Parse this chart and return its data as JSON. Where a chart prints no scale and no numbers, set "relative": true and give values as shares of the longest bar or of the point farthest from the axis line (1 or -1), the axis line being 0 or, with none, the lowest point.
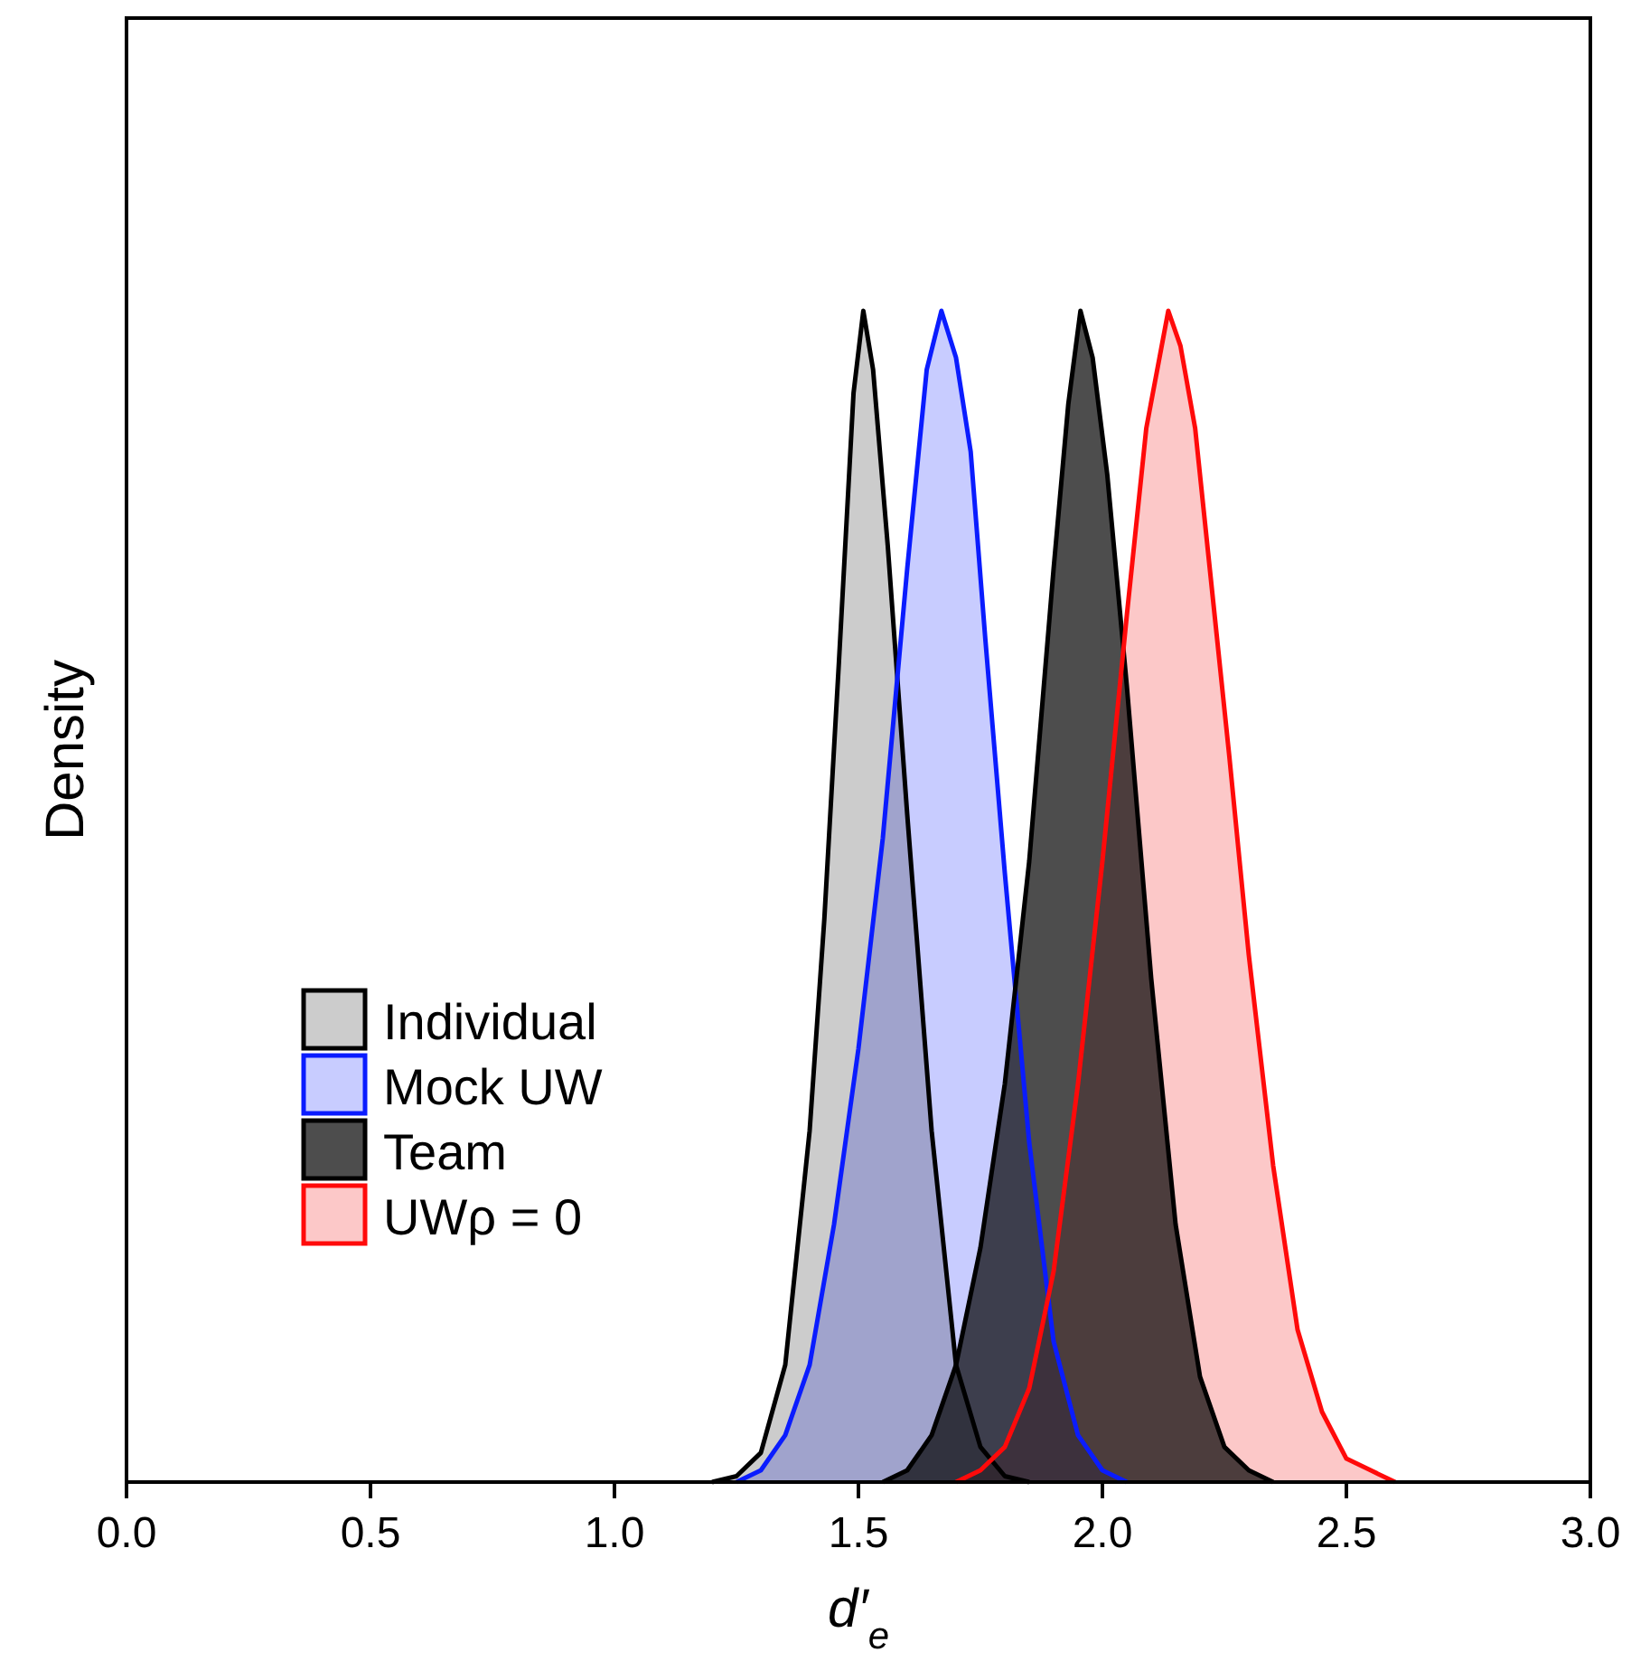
{
  "chart_data": {
    "type": "area",
    "relative": true,
    "xlabel": "d′$_{e}$",
    "ylabel": "Density",
    "xlim": [
      0,
      3
    ],
    "xticks": [
      {
        "value": 0,
        "label": "0.0"
      },
      {
        "value": 0.5,
        "label": "0.5"
      },
      {
        "value": 1,
        "label": "1.0"
      },
      {
        "value": 1.5,
        "label": "1.5"
      },
      {
        "value": 2,
        "label": "2.0"
      },
      {
        "value": 2.5,
        "label": "2.5"
      },
      {
        "value": 3,
        "label": "3.0"
      }
    ],
    "legend": "bottom left",
    "grid": false,
    "series": [
      {
        "name": "Individual",
        "color": "#cccccc",
        "x": [
          1.2,
          1.25,
          1.3,
          1.35,
          1.4,
          1.43,
          1.46,
          1.49,
          1.51,
          1.53,
          1.56,
          1.6,
          1.65,
          1.7,
          1.75,
          1.8,
          1.85
        ],
        "values": [
          0,
          0.005,
          0.025,
          0.1,
          0.3,
          0.48,
          0.7,
          0.93,
          1,
          0.95,
          0.8,
          0.57,
          0.3,
          0.1,
          0.03,
          0.005,
          0
        ]
      },
      {
        "name": "Mock UW",
        "color": "#c8ccff",
        "x": [
          1.25,
          1.3,
          1.35,
          1.4,
          1.45,
          1.5,
          1.55,
          1.6,
          1.64,
          1.67,
          1.7,
          1.73,
          1.76,
          1.8,
          1.85,
          1.9,
          1.95,
          2,
          2.05
        ],
        "values": [
          0,
          0.01,
          0.04,
          0.1,
          0.22,
          0.37,
          0.55,
          0.78,
          0.95,
          1,
          0.96,
          0.88,
          0.72,
          0.52,
          0.29,
          0.12,
          0.04,
          0.01,
          0
        ]
      },
      {
        "name": "Team",
        "color": "#4d4d4d",
        "x": [
          1.55,
          1.6,
          1.65,
          1.7,
          1.75,
          1.8,
          1.85,
          1.9,
          1.93,
          1.955,
          1.98,
          2.01,
          2.05,
          2.1,
          2.15,
          2.2,
          2.25,
          2.3,
          2.35
        ],
        "values": [
          0,
          0.01,
          0.04,
          0.1,
          0.2,
          0.34,
          0.53,
          0.78,
          0.92,
          1,
          0.96,
          0.86,
          0.68,
          0.43,
          0.22,
          0.09,
          0.03,
          0.01,
          0
        ]
      },
      {
        "name": "UWρ = 0",
        "color": "#fcc8c8",
        "x": [
          1.7,
          1.75,
          1.8,
          1.85,
          1.9,
          1.95,
          2,
          2.05,
          2.09,
          2.135,
          2.16,
          2.19,
          2.22,
          2.26,
          2.3,
          2.35,
          2.4,
          2.45,
          2.5,
          2.55,
          2.6
        ],
        "values": [
          0,
          0.01,
          0.03,
          0.08,
          0.18,
          0.34,
          0.53,
          0.74,
          0.9,
          1,
          0.97,
          0.9,
          0.78,
          0.62,
          0.45,
          0.27,
          0.13,
          0.06,
          0.02,
          0.01,
          0
        ]
      }
    ]
  }
}
